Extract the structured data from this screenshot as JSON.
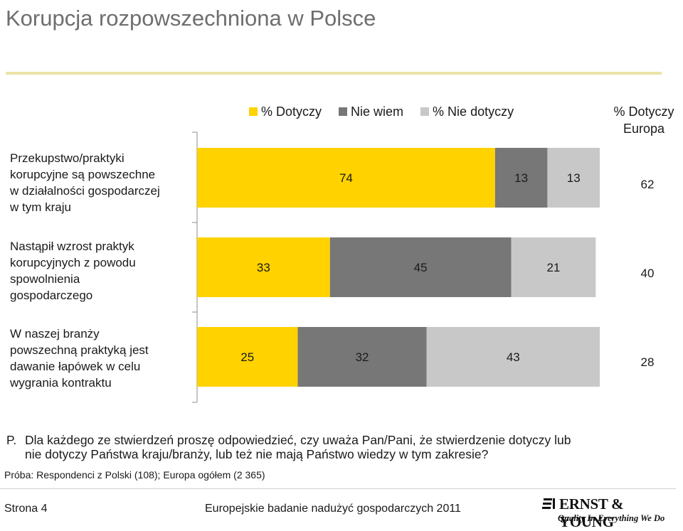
{
  "title": "Korupcja rozpowszechniona w Polsce",
  "legend": {
    "dotyczy": "% Dotyczy",
    "nie_wiem": "Nie wiem",
    "nie_dotyczy": "% Nie dotyczy"
  },
  "europe_header": {
    "line1": "% Dotyczy",
    "line2": "Europa"
  },
  "colors": {
    "dotyczy": "#ffd200",
    "nie_wiem": "#777777",
    "nie_dotyczy": "#c8c8c8",
    "title_rule": "#ece3a6",
    "axis": "#8c8c8c"
  },
  "chart_data": {
    "type": "bar",
    "orientation": "horizontal",
    "stacked": true,
    "categories": [
      "Przekupstwo/praktyki korupcyjne są powszechne w działalności gospodarczej w tym kraju",
      "Nastąpił wzrost praktyk korupcyjnych z powodu spowolnienia gospodarczego",
      "W naszej branży powszechną praktyką jest dawanie łapówek w celu wygrania kontraktu"
    ],
    "series": [
      {
        "name": "% Dotyczy",
        "values": [
          74,
          33,
          25
        ],
        "color": "#ffd200"
      },
      {
        "name": "Nie wiem",
        "values": [
          13,
          45,
          32
        ],
        "color": "#777777"
      },
      {
        "name": "% Nie dotyczy",
        "values": [
          13,
          21,
          43
        ],
        "color": "#c8c8c8"
      }
    ],
    "europe": {
      "name": "% Dotyczy Europa",
      "values": [
        62,
        40,
        28
      ]
    },
    "xlim": [
      0,
      100
    ],
    "legend_position": "top"
  },
  "row_labels": [
    [
      "Przekupstwo/praktyki",
      "korupcyjne są powszechne",
      "w działalności gospodarczej",
      "w tym kraju"
    ],
    [
      "Nastąpił wzrost praktyk",
      "korupcyjnych z powodu",
      "spowolnienia",
      "gospodarczego"
    ],
    [
      "W naszej branży",
      "powszechną praktyką jest",
      "dawanie łapówek w celu",
      "wygrania kontraktu"
    ]
  ],
  "question": {
    "prefix": "P.",
    "line1": "Dla każdego ze stwierdzeń proszę odpowiedzieć, czy uważa Pan/Pani, że stwierdzenie dotyczy lub",
    "line2": "nie dotyczy Państwa kraju/branży, lub też nie mają Państwo wiedzy w tym zakresie?"
  },
  "sample": "Próba: Respondenci z Polski (108); Europa ogółem (2 365)",
  "footer": {
    "page": "Strona 4",
    "center": "Europejskie badanie nadużyć gospodarczych 2011"
  },
  "logo": {
    "name": "ERNST & YOUNG",
    "tagline": "Quality In Everything We Do"
  }
}
